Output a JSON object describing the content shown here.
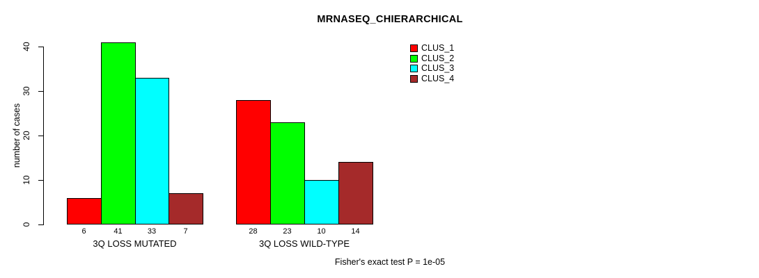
{
  "chart_data": {
    "type": "bar",
    "title": "MRNASEQ_CHIERARCHICAL",
    "ylabel": "number of cases",
    "xlabel": "",
    "caption": "Fisher's exact test P = 1e-05",
    "categories": [
      "3Q LOSS MUTATED",
      "3Q LOSS WILD-TYPE"
    ],
    "series": [
      {
        "name": "CLUS_1",
        "color": "#ff0000",
        "values": [
          6,
          28
        ]
      },
      {
        "name": "CLUS_2",
        "color": "#00ff00",
        "values": [
          41,
          23
        ]
      },
      {
        "name": "CLUS_3",
        "color": "#00ffff",
        "values": [
          33,
          10
        ]
      },
      {
        "name": "CLUS_4",
        "color": "#a52a2a",
        "values": [
          7,
          14
        ]
      }
    ],
    "value_labels": [
      [
        6,
        41,
        33,
        7
      ],
      [
        28,
        23,
        10,
        14
      ]
    ],
    "yticks": [
      0,
      10,
      20,
      30,
      40
    ],
    "ylim": [
      0,
      41
    ],
    "bar_border_color": "#000000",
    "background_color": "#ffffff",
    "grid": false,
    "legend_position": "top-right",
    "legend_box": false
  }
}
